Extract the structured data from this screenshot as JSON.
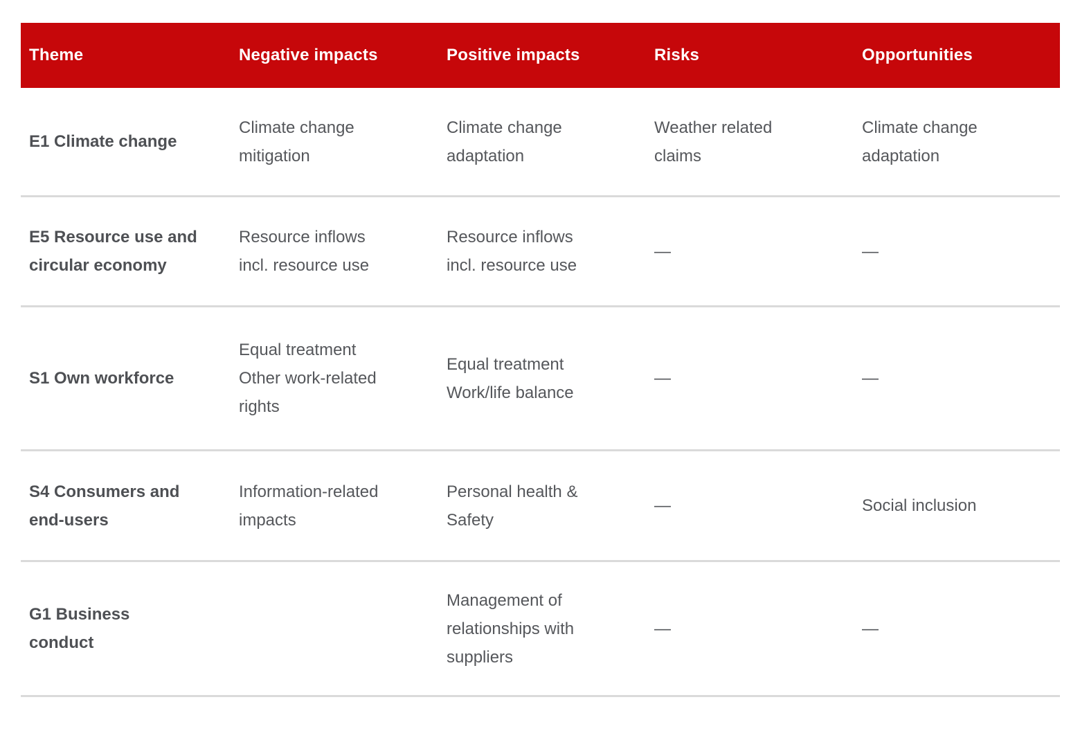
{
  "table": {
    "columns": [
      {
        "label": "Theme"
      },
      {
        "label": "Negative impacts"
      },
      {
        "label": "Positive impacts"
      },
      {
        "label": "Risks"
      },
      {
        "label": "Opportunities"
      }
    ],
    "rows": [
      {
        "theme": "E1 Climate change",
        "negative": "Climate change\nmitigation",
        "positive": "Climate change\nadaptation",
        "risks": "Weather related\nclaims",
        "opportunities": "Climate change\nadaptation"
      },
      {
        "theme": "E5 Resource use and\ncircular economy",
        "negative": "Resource inflows\nincl. resource use",
        "positive": "Resource inflows\nincl. resource use",
        "risks": "—",
        "opportunities": "—"
      },
      {
        "theme": "S1 Own workforce",
        "negative": "Equal treatment\nOther work-related\nrights",
        "positive": "Equal treatment\nWork/life balance",
        "risks": "—",
        "opportunities": "—"
      },
      {
        "theme": "S4 Consumers and\nend-users",
        "negative": "Information-related\nimpacts",
        "positive": "Personal health &\nSafety",
        "risks": "—",
        "opportunities": "Social inclusion"
      },
      {
        "theme": "G1 Business\nconduct",
        "negative": "",
        "positive": "Management of\nrelationships with\nsuppliers",
        "risks": "—",
        "opportunities": "—"
      }
    ],
    "colors": {
      "header_background": "#c6070a",
      "header_text": "#ffffff",
      "body_text": "#55575b",
      "theme_text": "#4e5054",
      "row_separator": "#dadada"
    }
  }
}
